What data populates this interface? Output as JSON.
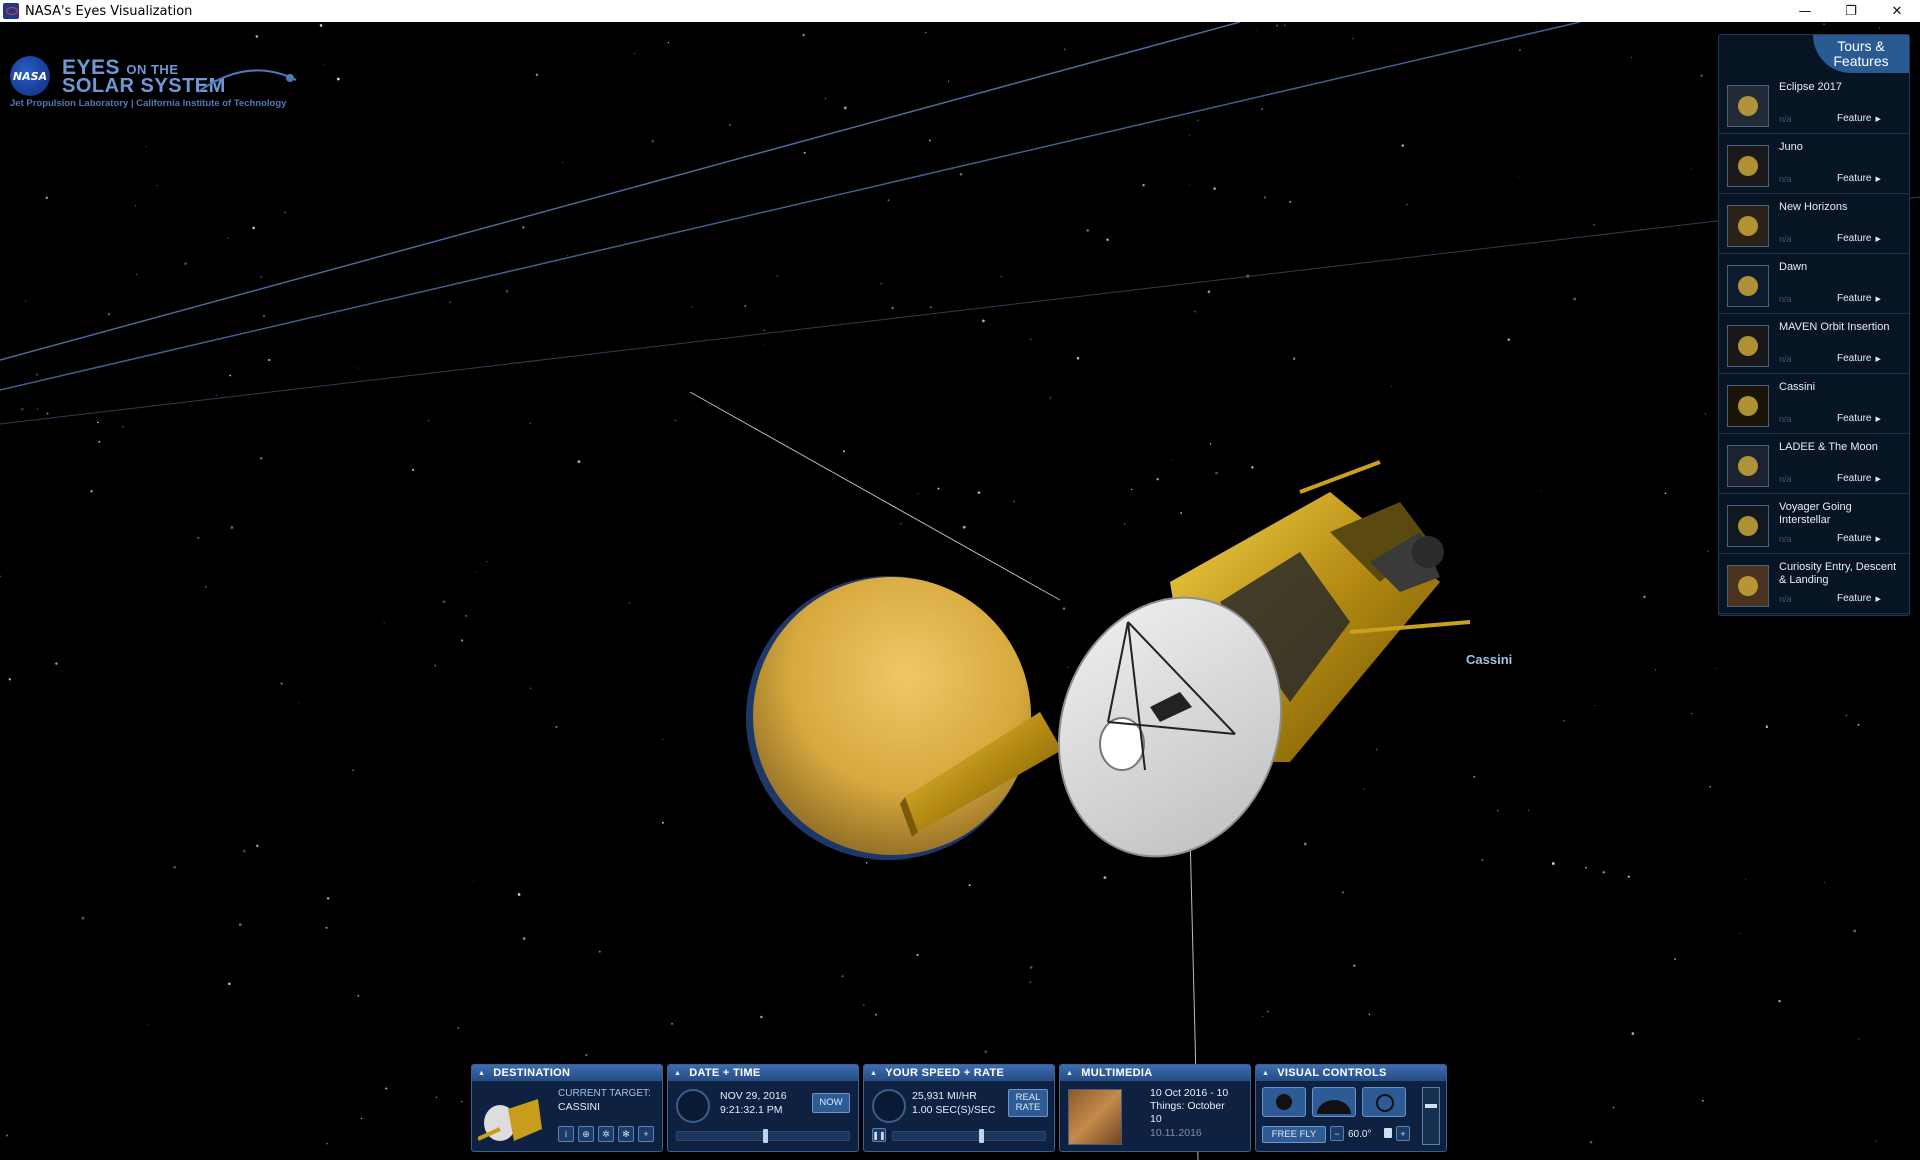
{
  "window": {
    "title": "NASA's Eyes Visualization",
    "controls": [
      "—",
      "❐",
      "✕"
    ]
  },
  "logo": {
    "badge": "NASA",
    "eyes": "EYES",
    "on_the": "ON THE",
    "solar_system": "SOLAR SYSTEM",
    "jpl": "Jet Propulsion Laboratory | California Institute of Technology"
  },
  "tours": {
    "button_line1": "Tours &",
    "button_line2": "Features",
    "items": [
      {
        "name": "Eclipse 2017",
        "na": "n/a",
        "type": "Feature",
        "icon": "moon-eclipse-icon"
      },
      {
        "name": "Juno",
        "na": "n/a",
        "type": "Feature",
        "icon": "juno-spacecraft-icon"
      },
      {
        "name": "New Horizons",
        "na": "n/a",
        "type": "Feature",
        "icon": "new-horizons-icon"
      },
      {
        "name": "Dawn",
        "na": "n/a",
        "type": "Feature",
        "icon": "dawn-spacecraft-icon"
      },
      {
        "name": "MAVEN Orbit Insertion",
        "na": "n/a",
        "type": "Feature",
        "icon": "maven-spacecraft-icon"
      },
      {
        "name": "Cassini",
        "na": "n/a",
        "type": "Feature",
        "icon": "cassini-spacecraft-icon"
      },
      {
        "name": "LADEE & The Moon",
        "na": "n/a",
        "type": "Feature",
        "icon": "ladee-moon-icon"
      },
      {
        "name": "Voyager Going Interstellar",
        "na": "n/a",
        "type": "Feature",
        "icon": "voyager-icon"
      },
      {
        "name": "Curiosity Entry, Descent & Landing",
        "na": "n/a",
        "type": "Feature",
        "icon": "curiosity-rover-icon"
      }
    ]
  },
  "scene": {
    "spacecraft_label": "Cassini"
  },
  "panels": {
    "destination": {
      "title": "DESTINATION",
      "current_target_label": "CURRENT TARGET:",
      "current_target_value": "CASSINI",
      "buttons": [
        "i",
        "⊕",
        "✲",
        "✻",
        "+"
      ]
    },
    "datetime": {
      "title": "DATE + TIME",
      "date": "NOV 29, 2016",
      "time": "9:21:32.1 PM",
      "now_label": "NOW"
    },
    "speed": {
      "title": "YOUR SPEED + RATE",
      "speed": "25,931 MI/HR",
      "rate": "1.00 SEC(S)/SEC",
      "real_rate_label1": "REAL",
      "real_rate_label2": "RATE"
    },
    "multimedia": {
      "title": "MULTIMEDIA",
      "line1": "10 Oct 2016 - 10",
      "line2": "Things: October",
      "line3": "10",
      "date": "10.11.2016"
    },
    "visual": {
      "title": "VISUAL CONTROLS",
      "free_fly_label": "FREE FLY",
      "fov": "60.0°",
      "minus": "−",
      "plus": "+"
    }
  },
  "colors": {
    "accent": "#3e6cae",
    "label_blue": "#9fc1e6",
    "titan_gold": "#d6a83e"
  }
}
